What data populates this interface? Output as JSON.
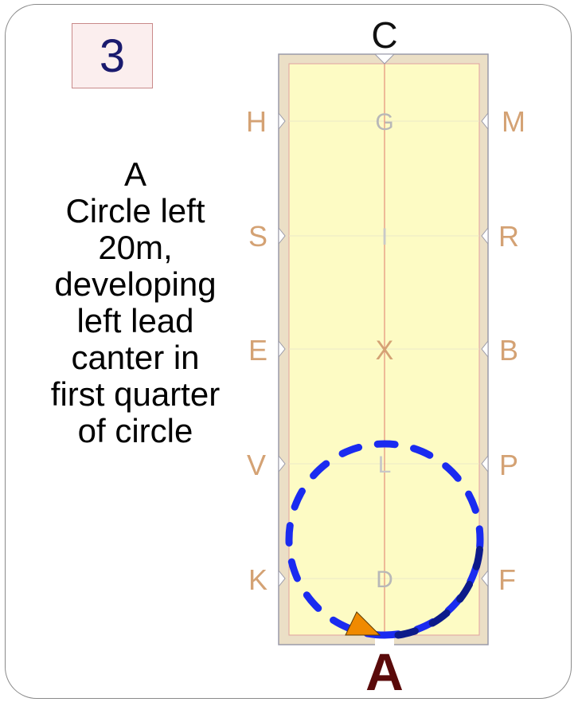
{
  "test_number": "3",
  "instructions": {
    "lines": [
      "A",
      "Circle left",
      "20m,",
      "developing",
      "left lead",
      "canter in",
      "first quarter",
      "of circle"
    ]
  },
  "arena": {
    "letters": {
      "top": "C",
      "bottom": "A",
      "left": [
        "H",
        "S",
        "E",
        "V",
        "K"
      ],
      "right": [
        "M",
        "R",
        "B",
        "P",
        "F"
      ],
      "centerline": [
        "G",
        "I",
        "X",
        "L",
        "D"
      ]
    }
  },
  "colors": {
    "arena_fill": "#fdfbc4",
    "arena_border": "#ebdfc6",
    "marker_letters": "#d4a274",
    "centerline_letters": "#b8b8b8",
    "x_letter": "#d4a274",
    "circle_blue": "#1a2bf0",
    "circle_navy": "#0c1a8a",
    "horse_marker": "#f08a00",
    "letter_A": "#5a0a0a"
  },
  "icons": {
    "horse_marker": "triangle-horse-icon"
  }
}
